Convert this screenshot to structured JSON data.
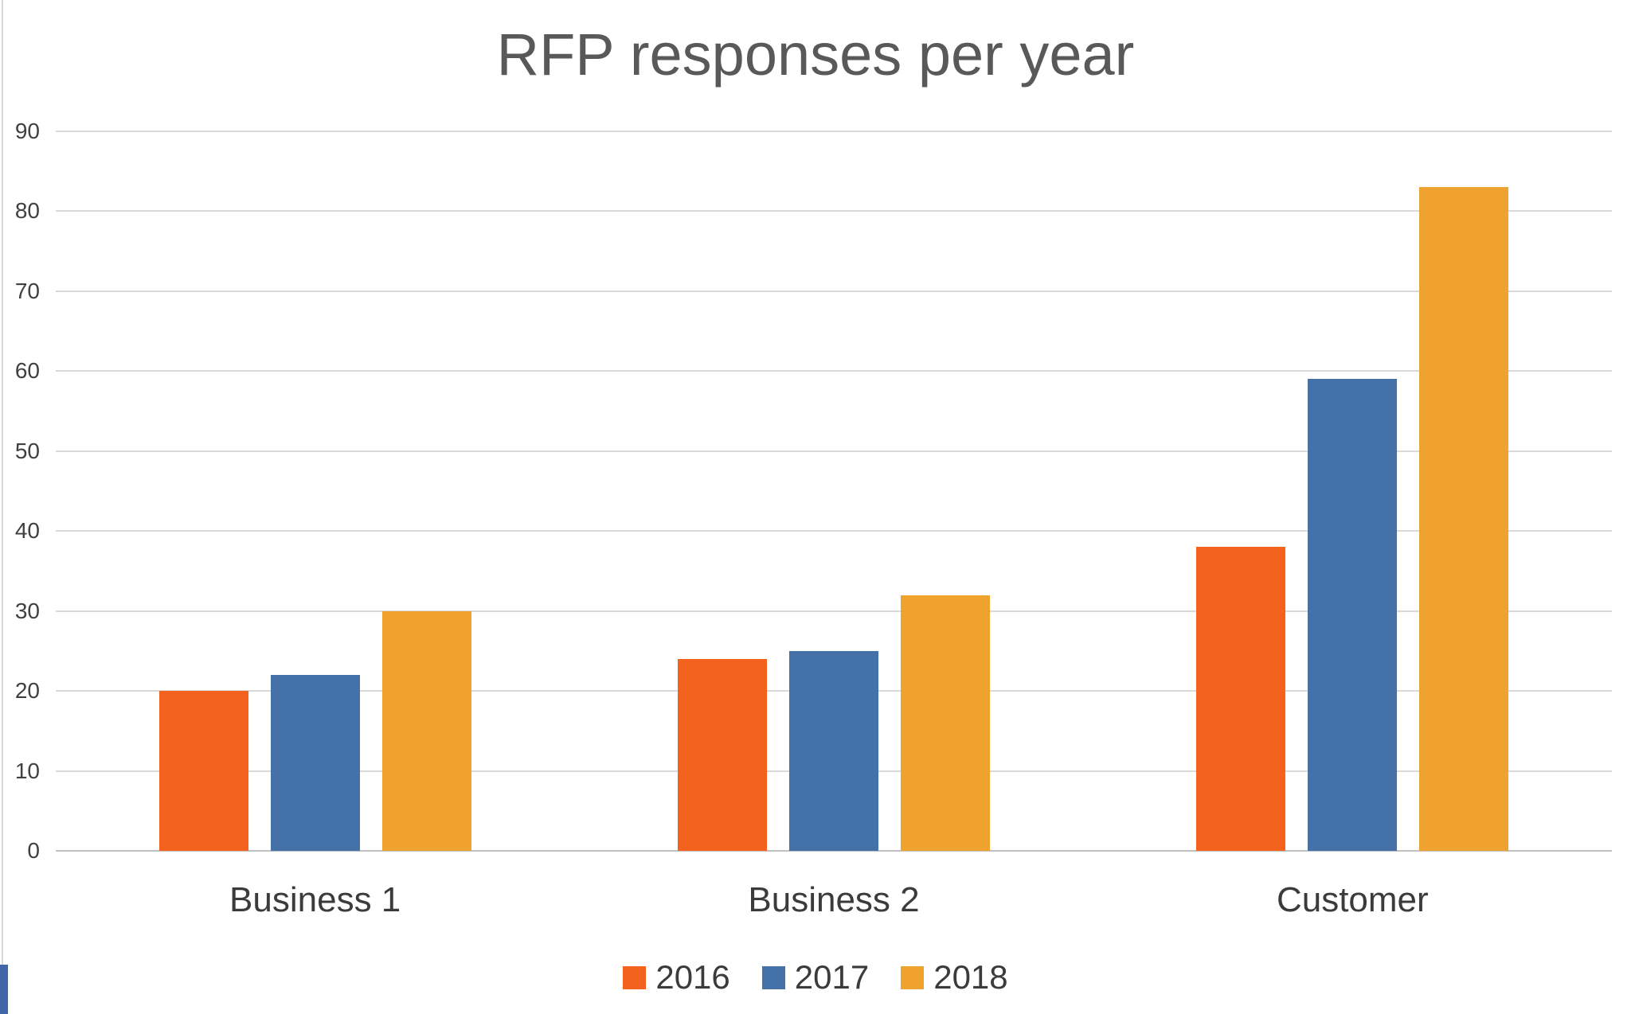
{
  "page": {
    "background": "#ffffff"
  },
  "chart_data": {
    "type": "bar",
    "title": "RFP responses per year",
    "categories": [
      "Business 1",
      "Business 2",
      "Customer"
    ],
    "series": [
      {
        "name": "2016",
        "color": "#F4631E",
        "values": [
          20,
          24,
          38
        ]
      },
      {
        "name": "2017",
        "color": "#4472A8",
        "values": [
          22,
          25,
          59
        ]
      },
      {
        "name": "2018",
        "color": "#F0A22E",
        "values": [
          30,
          32,
          83
        ]
      }
    ],
    "xlabel": "",
    "ylabel": "",
    "ylim": [
      0,
      90
    ],
    "ytick_step": 10,
    "yticks": [
      0,
      10,
      20,
      30,
      40,
      50,
      60,
      70,
      80,
      90
    ],
    "grid": true,
    "legend_position": "bottom",
    "title_color": "#595959",
    "axis_text_color": "#404040",
    "category_text_color": "#3B3B3B",
    "gridline_color": "#D9D9D9",
    "axis_line_color": "#C0C0C0"
  }
}
